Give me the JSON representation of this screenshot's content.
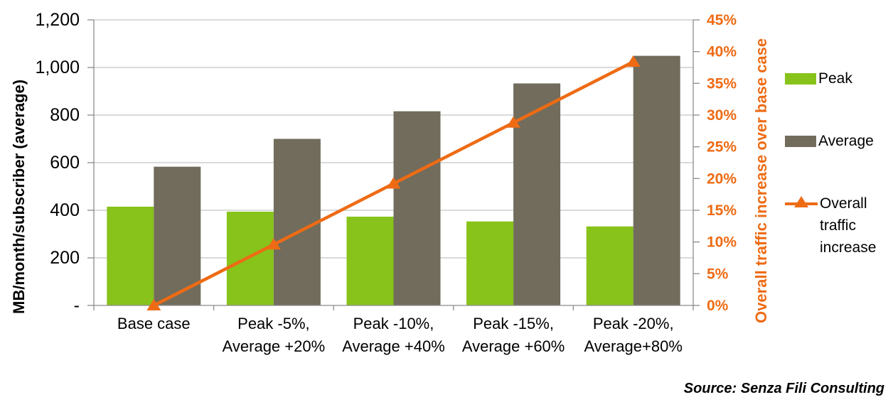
{
  "chart_data": {
    "type": "combo",
    "title": "",
    "categories_display": [
      [
        "Base case",
        ""
      ],
      [
        "Peak -5%,",
        "Average +20%"
      ],
      [
        "Peak -10%,",
        "Average +40%"
      ],
      [
        "Peak -15%,",
        "Average +60%"
      ],
      [
        "Peak -20%,",
        "Average+80%"
      ]
    ],
    "categories": [
      "Base case",
      "Peak -5%, Average +20%",
      "Peak -10%, Average +40%",
      "Peak -15%, Average +60%",
      "Peak -20%, Average+80%"
    ],
    "left_axis": {
      "label": "MB/month/subscriber (average)",
      "min": 0,
      "max": 1200,
      "tick_step": 200,
      "tick_labels": [
        "-",
        "200",
        "400",
        "600",
        "800",
        "1,000",
        "1,200"
      ]
    },
    "right_axis": {
      "label": "Overall traffic increase over base case",
      "min": 0,
      "max": 45,
      "tick_step": 5,
      "tick_labels": [
        "0%",
        "5%",
        "10%",
        "15%",
        "20%",
        "25%",
        "30%",
        "35%",
        "40%",
        "45%"
      ]
    },
    "series": [
      {
        "name": "Peak",
        "type": "bar",
        "axis": "left",
        "color": "#87C31A",
        "values": [
          415,
          394,
          373,
          353,
          332
        ]
      },
      {
        "name": "Average",
        "type": "bar",
        "axis": "left",
        "color": "#716C5C",
        "values": [
          583,
          700,
          816,
          933,
          1049
        ]
      },
      {
        "name": "Overall traffic increase",
        "type": "line",
        "axis": "right",
        "color": "#EE6B14",
        "marker": "triangle-up",
        "values": [
          0,
          9.6,
          19.2,
          28.8,
          38.4
        ]
      }
    ],
    "grid": true,
    "legend_position": "right"
  },
  "legend": {
    "peak": "Peak",
    "average": "Average",
    "line": "Overall traffic increase"
  },
  "axis_titles": {
    "left": "MB/month/subscriber (average)",
    "right": "Overall traffic increase over base case"
  },
  "source": "Source: Senza Fili Consulting",
  "colors": {
    "peak_green": "#87C31A",
    "average_gray": "#716C5C",
    "line_orange": "#EE6B14",
    "gridline": "#C3C3C3",
    "axis_line": "#8C8C8C"
  }
}
